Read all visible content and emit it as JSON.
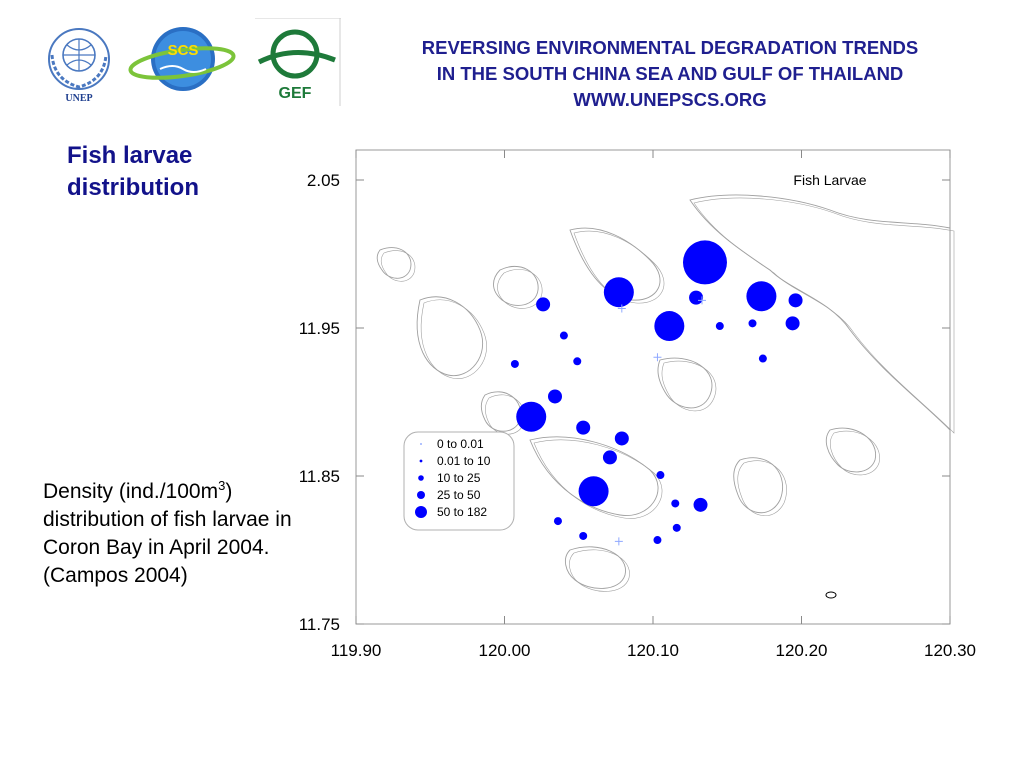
{
  "header": {
    "line1": "REVERSING ENVIRONMENTAL DEGRADATION TRENDS",
    "line2": "IN THE SOUTH CHINA SEA AND GULF OF THAILAND",
    "line3": "WWW.UNEPSCS.ORG"
  },
  "logos": {
    "unep": "UNEP",
    "scs": "SCS",
    "gef": "GEF"
  },
  "slide_title": {
    "line1": "Fish larvae",
    "line2": "distribution"
  },
  "caption": {
    "part1": "Density (ind./100m",
    "sup": "3",
    "part2": ") distribution of fish larvae in Coron Bay in April 2004. (Campos 2004)"
  },
  "colors": {
    "accent": "#1f1f8f",
    "point": "#0000ff",
    "coastline": "#a0a0a0"
  },
  "chart_data": {
    "type": "scatter",
    "title": "Fish Larvae",
    "xlim": [
      119.9,
      120.3
    ],
    "ylim": [
      11.75,
      2.1
    ],
    "x_ticks": [
      "119.90",
      "120.00",
      "120.10",
      "120.20",
      "120.30"
    ],
    "y_ticks": [
      "2.05",
      "11.95",
      "11.85",
      "11.75"
    ],
    "y_tick_values": [
      2.05,
      11.95,
      11.85,
      11.75
    ],
    "grid": true,
    "legend_position": "lower-center",
    "legend": [
      {
        "label": "0  to  0.01",
        "class": 0
      },
      {
        "label": "0.01  to  10",
        "class": 1
      },
      {
        "label": "10  to  25",
        "class": 2
      },
      {
        "label": "25  to  50",
        "class": 3
      },
      {
        "label": "50  to  182",
        "class": 4
      }
    ],
    "points": [
      {
        "x": 120.135,
        "y": 12.017,
        "class": 4
      },
      {
        "x": 120.077,
        "y": 11.995,
        "class": 4
      },
      {
        "x": 120.173,
        "y": 11.992,
        "class": 4
      },
      {
        "x": 120.111,
        "y": 11.97,
        "class": 4
      },
      {
        "x": 120.018,
        "y": 11.903,
        "class": 4
      },
      {
        "x": 120.06,
        "y": 11.848,
        "class": 4
      },
      {
        "x": 120.129,
        "y": 11.991,
        "class": 3
      },
      {
        "x": 120.196,
        "y": 11.989,
        "class": 3
      },
      {
        "x": 120.026,
        "y": 11.986,
        "class": 3
      },
      {
        "x": 120.194,
        "y": 11.972,
        "class": 3
      },
      {
        "x": 120.034,
        "y": 11.918,
        "class": 3
      },
      {
        "x": 120.053,
        "y": 11.895,
        "class": 3
      },
      {
        "x": 120.079,
        "y": 11.887,
        "class": 3
      },
      {
        "x": 120.071,
        "y": 11.873,
        "class": 3
      },
      {
        "x": 120.132,
        "y": 11.838,
        "class": 3
      },
      {
        "x": 120.145,
        "y": 11.97,
        "class": 2
      },
      {
        "x": 120.167,
        "y": 11.972,
        "class": 2
      },
      {
        "x": 120.04,
        "y": 11.963,
        "class": 2
      },
      {
        "x": 120.049,
        "y": 11.944,
        "class": 2
      },
      {
        "x": 120.007,
        "y": 11.942,
        "class": 2
      },
      {
        "x": 120.174,
        "y": 11.946,
        "class": 2
      },
      {
        "x": 120.105,
        "y": 11.86,
        "class": 2
      },
      {
        "x": 120.115,
        "y": 11.839,
        "class": 2
      },
      {
        "x": 120.036,
        "y": 11.826,
        "class": 2
      },
      {
        "x": 120.116,
        "y": 11.821,
        "class": 2
      },
      {
        "x": 120.053,
        "y": 11.815,
        "class": 2
      },
      {
        "x": 120.103,
        "y": 11.812,
        "class": 2
      },
      {
        "x": 120.079,
        "y": 11.983,
        "class": 0
      },
      {
        "x": 120.103,
        "y": 11.947,
        "class": 0
      },
      {
        "x": 120.077,
        "y": 11.811,
        "class": 0
      },
      {
        "x": 120.133,
        "y": 11.989,
        "class": 0
      }
    ]
  }
}
